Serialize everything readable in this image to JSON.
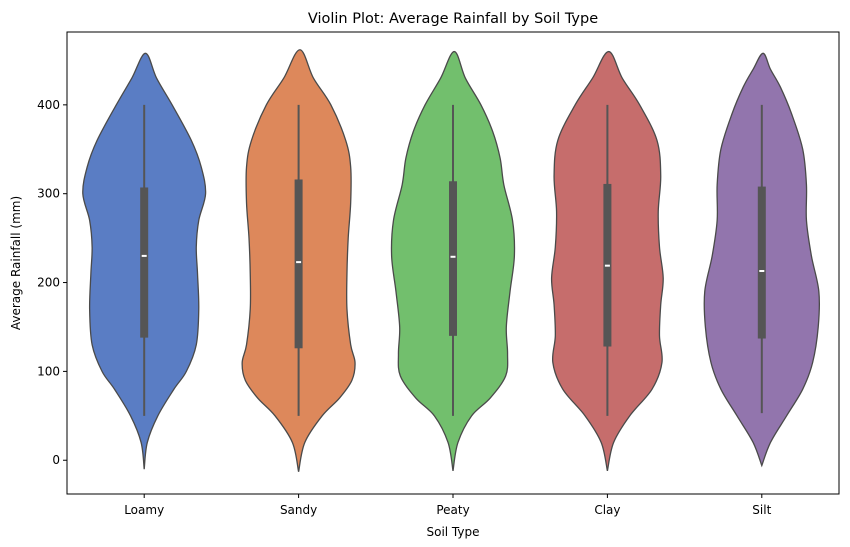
{
  "chart_data": {
    "type": "violin",
    "title": "Violin Plot: Average Rainfall by Soil Type",
    "xlabel": "Soil Type",
    "ylabel": "Average Rainfall (mm)",
    "ylim": [
      -38,
      482
    ],
    "yticks": [
      0,
      100,
      200,
      300,
      400
    ],
    "grid": false,
    "categories": [
      "Loamy",
      "Sandy",
      "Peaty",
      "Clay",
      "Silt"
    ],
    "colors": [
      "#5a7dc4",
      "#dd885b",
      "#72bf6d",
      "#c66d6c",
      "#9275ad"
    ],
    "outline_color": "#4a4a4a",
    "series": [
      {
        "name": "Loamy",
        "min": 50,
        "q1": 138,
        "median": 230,
        "q3": 307,
        "max": 400,
        "kde": [
          [
            -10,
            0
          ],
          [
            20,
            0.05
          ],
          [
            50,
            0.22
          ],
          [
            80,
            0.48
          ],
          [
            100,
            0.68
          ],
          [
            130,
            0.84
          ],
          [
            170,
            0.88
          ],
          [
            210,
            0.86
          ],
          [
            240,
            0.84
          ],
          [
            270,
            0.88
          ],
          [
            300,
            0.99
          ],
          [
            330,
            0.92
          ],
          [
            360,
            0.76
          ],
          [
            400,
            0.45
          ],
          [
            430,
            0.2
          ],
          [
            458,
            0.02
          ]
        ]
      },
      {
        "name": "Sandy",
        "min": 50,
        "q1": 126,
        "median": 223,
        "q3": 316,
        "max": 400,
        "kde": [
          [
            -13,
            0
          ],
          [
            20,
            0.1
          ],
          [
            50,
            0.38
          ],
          [
            70,
            0.66
          ],
          [
            90,
            0.86
          ],
          [
            110,
            0.91
          ],
          [
            130,
            0.84
          ],
          [
            170,
            0.78
          ],
          [
            210,
            0.78
          ],
          [
            250,
            0.8
          ],
          [
            290,
            0.84
          ],
          [
            330,
            0.84
          ],
          [
            360,
            0.76
          ],
          [
            400,
            0.52
          ],
          [
            430,
            0.24
          ],
          [
            462,
            0.02
          ]
        ]
      },
      {
        "name": "Peaty",
        "min": 50,
        "q1": 140,
        "median": 229,
        "q3": 314,
        "max": 400,
        "kde": [
          [
            -12,
            0
          ],
          [
            20,
            0.08
          ],
          [
            50,
            0.3
          ],
          [
            70,
            0.6
          ],
          [
            95,
            0.85
          ],
          [
            120,
            0.88
          ],
          [
            150,
            0.86
          ],
          [
            190,
            0.92
          ],
          [
            230,
            0.99
          ],
          [
            270,
            0.96
          ],
          [
            310,
            0.82
          ],
          [
            340,
            0.76
          ],
          [
            370,
            0.64
          ],
          [
            400,
            0.45
          ],
          [
            430,
            0.2
          ],
          [
            460,
            0.02
          ]
        ]
      },
      {
        "name": "Clay",
        "min": 50,
        "q1": 128,
        "median": 219,
        "q3": 311,
        "max": 400,
        "kde": [
          [
            -12,
            0
          ],
          [
            20,
            0.1
          ],
          [
            50,
            0.36
          ],
          [
            80,
            0.72
          ],
          [
            110,
            0.88
          ],
          [
            140,
            0.84
          ],
          [
            175,
            0.86
          ],
          [
            205,
            0.9
          ],
          [
            240,
            0.84
          ],
          [
            280,
            0.82
          ],
          [
            320,
            0.86
          ],
          [
            360,
            0.8
          ],
          [
            400,
            0.52
          ],
          [
            430,
            0.24
          ],
          [
            460,
            0.02
          ]
        ]
      },
      {
        "name": "Silt",
        "min": 53,
        "q1": 137,
        "median": 213,
        "q3": 308,
        "max": 400,
        "kde": [
          [
            -6,
            0
          ],
          [
            20,
            0.14
          ],
          [
            50,
            0.4
          ],
          [
            80,
            0.66
          ],
          [
            110,
            0.82
          ],
          [
            150,
            0.91
          ],
          [
            190,
            0.92
          ],
          [
            230,
            0.8
          ],
          [
            270,
            0.72
          ],
          [
            310,
            0.72
          ],
          [
            350,
            0.66
          ],
          [
            390,
            0.48
          ],
          [
            420,
            0.3
          ],
          [
            440,
            0.14
          ],
          [
            458,
            0.02
          ]
        ]
      }
    ]
  }
}
